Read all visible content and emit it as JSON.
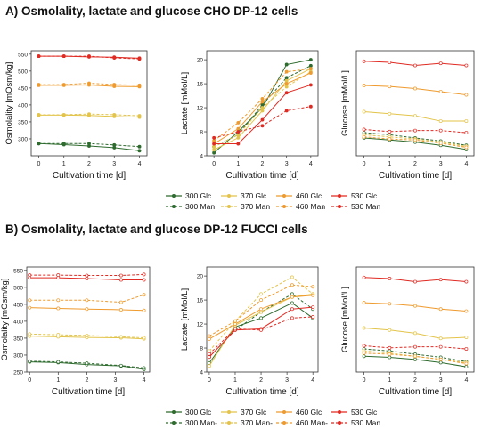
{
  "panels": {
    "a_title": "A) Osmolality, lactate and glucose CHO DP-12 cells",
    "b_title": "B) Osmolality, lactate and glucose DP-12 FUCCI  cells"
  },
  "colors": {
    "c300": "#2e6b2e",
    "c370": "#e3c44a",
    "c460": "#ef9a2c",
    "c530": "#e02a22"
  },
  "legend_a": [
    {
      "label": "300 Glc",
      "color": "#2e6b2e",
      "dashed": false
    },
    {
      "label": "370 Glc",
      "color": "#e3c44a",
      "dashed": false
    },
    {
      "label": "460 Glc",
      "color": "#ef9a2c",
      "dashed": false
    },
    {
      "label": "530 Glc",
      "color": "#e02a22",
      "dashed": false
    },
    {
      "label": "300 Man",
      "color": "#2e6b2e",
      "dashed": true
    },
    {
      "label": "370 Man",
      "color": "#e3c44a",
      "dashed": true
    },
    {
      "label": "460 Man",
      "color": "#ef9a2c",
      "dashed": true
    },
    {
      "label": "530 Man",
      "color": "#e02a22",
      "dashed": true
    }
  ],
  "legend_b": [
    {
      "label": "300 Glc",
      "color": "#2e6b2e",
      "dashed": false
    },
    {
      "label": "370 Glc",
      "color": "#e3c44a",
      "dashed": false
    },
    {
      "label": "460 Glc",
      "color": "#ef9a2c",
      "dashed": false
    },
    {
      "label": "530 Glc",
      "color": "#e02a22",
      "dashed": false
    },
    {
      "label": "300 Man-",
      "color": "#2e6b2e",
      "dashed": true
    },
    {
      "label": "370 Man-",
      "color": "#e3c44a",
      "dashed": true
    },
    {
      "label": "460 Man-",
      "color": "#ef9a2c",
      "dashed": true
    },
    {
      "label": "530 Man",
      "color": "#e02a22",
      "dashed": true
    }
  ],
  "chart_data": [
    {
      "id": "a-osmo",
      "type": "line",
      "panel": "A",
      "xlabel": "Cultivation time [d]",
      "ylabel": "Osmolality [mOsm/kg]",
      "xlim": [
        -0.3,
        4.3
      ],
      "ylim": [
        250,
        560
      ],
      "xticks": [
        0,
        1,
        2,
        3,
        4
      ],
      "yticks": [
        300,
        350,
        400,
        450,
        500,
        550
      ],
      "ytick_labels": [
        "300",
        "350",
        "400",
        "450",
        "500",
        "550"
      ],
      "filled": true,
      "x": [
        0,
        1,
        2,
        3,
        4
      ],
      "series": [
        {
          "name": "300 Glc",
          "color": "#2e6b2e",
          "dashed": false,
          "values": [
            286,
            283,
            279,
            274,
            265
          ]
        },
        {
          "name": "300 Man",
          "color": "#2e6b2e",
          "dashed": true,
          "values": [
            286,
            286,
            286,
            282,
            277
          ]
        },
        {
          "name": "370 Glc",
          "color": "#e3c44a",
          "dashed": false,
          "values": [
            370,
            370,
            369,
            366,
            364
          ]
        },
        {
          "name": "370 Man",
          "color": "#e3c44a",
          "dashed": true,
          "values": [
            371,
            371,
            373,
            371,
            368
          ]
        },
        {
          "name": "460 Glc",
          "color": "#ef9a2c",
          "dashed": false,
          "values": [
            458,
            458,
            459,
            455,
            454
          ]
        },
        {
          "name": "460 Man",
          "color": "#ef9a2c",
          "dashed": true,
          "values": [
            460,
            460,
            464,
            460,
            458
          ]
        },
        {
          "name": "530 Glc",
          "color": "#e02a22",
          "dashed": false,
          "values": [
            544,
            544,
            542,
            541,
            538
          ]
        },
        {
          "name": "530 Man",
          "color": "#e02a22",
          "dashed": true,
          "values": [
            544,
            544,
            544,
            539,
            536
          ]
        }
      ]
    },
    {
      "id": "a-lac",
      "type": "line",
      "panel": "A",
      "xlabel": "Cultivation time [d]",
      "ylabel": "Lactate [mMol/L]",
      "xlim": [
        -0.3,
        4.3
      ],
      "ylim": [
        4,
        21.5
      ],
      "xticks": [
        0,
        1,
        2,
        3,
        4
      ],
      "yticks": [
        4,
        8,
        12,
        16,
        20
      ],
      "ytick_labels": [
        "4",
        "8",
        "12",
        "16",
        "20"
      ],
      "filled": true,
      "x": [
        0,
        1,
        2,
        3,
        4
      ],
      "series": [
        {
          "name": "300 Glc",
          "color": "#2e6b2e",
          "dashed": false,
          "values": [
            4.5,
            8.0,
            12.0,
            19.2,
            20.0
          ]
        },
        {
          "name": "300 Man",
          "color": "#2e6b2e",
          "dashed": true,
          "values": [
            5.5,
            7.5,
            12.5,
            17.0,
            19.0
          ]
        },
        {
          "name": "370 Glc",
          "color": "#e3c44a",
          "dashed": false,
          "values": [
            5.0,
            7.0,
            11.5,
            16.5,
            18.5
          ]
        },
        {
          "name": "370 Man",
          "color": "#e3c44a",
          "dashed": true,
          "values": [
            5.5,
            7.5,
            12.0,
            15.5,
            18.0
          ]
        },
        {
          "name": "460 Glc",
          "color": "#ef9a2c",
          "dashed": false,
          "values": [
            6.0,
            8.5,
            13.0,
            16.0,
            17.8
          ]
        },
        {
          "name": "460 Man",
          "color": "#ef9a2c",
          "dashed": true,
          "values": [
            6.5,
            9.5,
            13.5,
            18.0,
            18.5
          ]
        },
        {
          "name": "530 Glc",
          "color": "#e02a22",
          "dashed": false,
          "values": [
            6.0,
            6.0,
            10.0,
            14.5,
            15.8
          ]
        },
        {
          "name": "530 Man",
          "color": "#e02a22",
          "dashed": true,
          "values": [
            7.0,
            8.0,
            9.0,
            11.5,
            12.2
          ]
        }
      ]
    },
    {
      "id": "a-glc",
      "type": "line",
      "panel": "A",
      "xlabel": "Cultivation time [d]",
      "ylabel": "Glucose [mMol/L]",
      "xlim": [
        -0.3,
        4.3
      ],
      "ylim": [
        0,
        100
      ],
      "xticks": [
        0,
        1,
        2,
        3,
        4
      ],
      "yticks": [],
      "ytick_labels": [],
      "filled": false,
      "x": [
        0,
        1,
        2,
        3,
        4
      ],
      "series": [
        {
          "name": "300 Glc",
          "color": "#2e6b2e",
          "dashed": false,
          "values": [
            17,
            15,
            13,
            10,
            6
          ]
        },
        {
          "name": "300 Man",
          "color": "#2e6b2e",
          "dashed": true,
          "values": [
            22,
            20,
            17,
            14,
            10
          ]
        },
        {
          "name": "370 Glc",
          "color": "#e3c44a",
          "dashed": false,
          "values": [
            42,
            40,
            38,
            33,
            33
          ]
        },
        {
          "name": "370 Man",
          "color": "#e3c44a",
          "dashed": true,
          "values": [
            20,
            18,
            16,
            13,
            9
          ]
        },
        {
          "name": "460 Glc",
          "color": "#ef9a2c",
          "dashed": false,
          "values": [
            67,
            66,
            64,
            61,
            58
          ]
        },
        {
          "name": "460 Man",
          "color": "#ef9a2c",
          "dashed": true,
          "values": [
            18,
            16,
            15,
            12,
            8
          ]
        },
        {
          "name": "530 Glc",
          "color": "#e02a22",
          "dashed": false,
          "values": [
            90,
            89,
            86,
            88,
            86
          ]
        },
        {
          "name": "530 Man",
          "color": "#e02a22",
          "dashed": true,
          "values": [
            25,
            23,
            24,
            24,
            22
          ]
        }
      ]
    },
    {
      "id": "b-osmo",
      "type": "line",
      "panel": "B",
      "xlabel": "Cultivation time [d]",
      "ylabel": "Osmolality [mOsm/kg]",
      "xlim": [
        -0.1,
        4.2
      ],
      "ylim": [
        250,
        560
      ],
      "xticks": [
        0,
        1,
        2,
        3,
        4
      ],
      "yticks": [
        250,
        300,
        350,
        400,
        450,
        500,
        550
      ],
      "ytick_labels": [
        "250",
        "300",
        "350",
        "400",
        "450",
        "500",
        "550"
      ],
      "filled": false,
      "x": [
        0,
        1,
        2,
        3.2,
        4
      ],
      "series": [
        {
          "name": "300 Glc",
          "color": "#2e6b2e",
          "dashed": false,
          "values": [
            280,
            278,
            272,
            268,
            258
          ]
        },
        {
          "name": "300 Man-",
          "color": "#2e6b2e",
          "dashed": true,
          "values": [
            282,
            280,
            276,
            269,
            262
          ]
        },
        {
          "name": "370 Glc",
          "color": "#e3c44a",
          "dashed": false,
          "values": [
            356,
            354,
            352,
            351,
            348
          ]
        },
        {
          "name": "370 Man-",
          "color": "#e3c44a",
          "dashed": true,
          "values": [
            362,
            360,
            358,
            354,
            351
          ]
        },
        {
          "name": "460 Glc",
          "color": "#ef9a2c",
          "dashed": false,
          "values": [
            440,
            438,
            436,
            434,
            432
          ]
        },
        {
          "name": "460 Man-",
          "color": "#ef9a2c",
          "dashed": true,
          "values": [
            462,
            462,
            462,
            456,
            478
          ]
        },
        {
          "name": "530 Glc",
          "color": "#e02a22",
          "dashed": false,
          "values": [
            528,
            528,
            526,
            522,
            522
          ]
        },
        {
          "name": "530 Man",
          "color": "#e02a22",
          "dashed": true,
          "values": [
            536,
            536,
            535,
            535,
            538
          ]
        }
      ]
    },
    {
      "id": "b-lac",
      "type": "line",
      "panel": "B",
      "xlabel": "Cultivation time [d]",
      "ylabel": "Lactate [mMol/L]",
      "xlim": [
        -0.1,
        4.2
      ],
      "ylim": [
        4,
        21.5
      ],
      "xticks": [
        0,
        1,
        2,
        3,
        4
      ],
      "yticks": [
        4,
        8,
        12,
        16,
        20
      ],
      "ytick_labels": [
        "4",
        "8",
        "12",
        "16",
        "20"
      ],
      "filled": false,
      "x": [
        0,
        1,
        2,
        3.2,
        4
      ],
      "series": [
        {
          "name": "300 Glc",
          "color": "#2e6b2e",
          "dashed": false,
          "values": [
            5.5,
            11.5,
            13.0,
            15.5,
            13.0
          ]
        },
        {
          "name": "300 Man-",
          "color": "#2e6b2e",
          "dashed": true,
          "values": [
            6.5,
            11.0,
            14.0,
            17.0,
            14.5
          ]
        },
        {
          "name": "370 Glc",
          "color": "#e3c44a",
          "dashed": false,
          "values": [
            5.0,
            11.8,
            14.0,
            16.5,
            17.0
          ]
        },
        {
          "name": "370 Man-",
          "color": "#e3c44a",
          "dashed": true,
          "values": [
            7.5,
            12.5,
            17.0,
            19.8,
            17.0
          ]
        },
        {
          "name": "460 Glc",
          "color": "#ef9a2c",
          "dashed": false,
          "values": [
            9.5,
            12.0,
            14.5,
            16.5,
            16.8
          ]
        },
        {
          "name": "460 Man-",
          "color": "#ef9a2c",
          "dashed": true,
          "values": [
            10.0,
            12.5,
            16.0,
            18.5,
            18.2
          ]
        },
        {
          "name": "530 Glc",
          "color": "#e02a22",
          "dashed": false,
          "values": [
            6.5,
            11.0,
            11.2,
            14.5,
            14.8
          ]
        },
        {
          "name": "530 Man",
          "color": "#e02a22",
          "dashed": true,
          "values": [
            7.0,
            11.2,
            11.0,
            13.0,
            13.2
          ]
        }
      ]
    },
    {
      "id": "b-glc",
      "type": "line",
      "panel": "B",
      "xlabel": "Cultivation time [d]",
      "ylabel": "Glucose [mMol/L]",
      "xlim": [
        -0.3,
        4.3
      ],
      "ylim": [
        0,
        100
      ],
      "xticks": [
        0,
        1,
        2,
        3,
        4
      ],
      "yticks": [],
      "ytick_labels": [],
      "filled": false,
      "x": [
        0,
        1,
        2,
        3,
        4
      ],
      "series": [
        {
          "name": "300 Glc",
          "color": "#2e6b2e",
          "dashed": false,
          "values": [
            15,
            14,
            12,
            9,
            5
          ]
        },
        {
          "name": "300 Man-",
          "color": "#2e6b2e",
          "dashed": true,
          "values": [
            22,
            20,
            17,
            14,
            10
          ]
        },
        {
          "name": "370 Glc",
          "color": "#e3c44a",
          "dashed": false,
          "values": [
            42,
            40,
            37,
            32,
            33
          ]
        },
        {
          "name": "370 Man-",
          "color": "#e3c44a",
          "dashed": true,
          "values": [
            20,
            18,
            15,
            12,
            9
          ]
        },
        {
          "name": "460 Glc",
          "color": "#ef9a2c",
          "dashed": false,
          "values": [
            66,
            65,
            63,
            60,
            58
          ]
        },
        {
          "name": "460 Man-",
          "color": "#ef9a2c",
          "dashed": true,
          "values": [
            18,
            17,
            15,
            12,
            8
          ]
        },
        {
          "name": "530 Glc",
          "color": "#e02a22",
          "dashed": false,
          "values": [
            90,
            89,
            86,
            88,
            86
          ]
        },
        {
          "name": "530 Man",
          "color": "#e02a22",
          "dashed": true,
          "values": [
            25,
            23,
            24,
            24,
            22
          ]
        }
      ]
    }
  ]
}
